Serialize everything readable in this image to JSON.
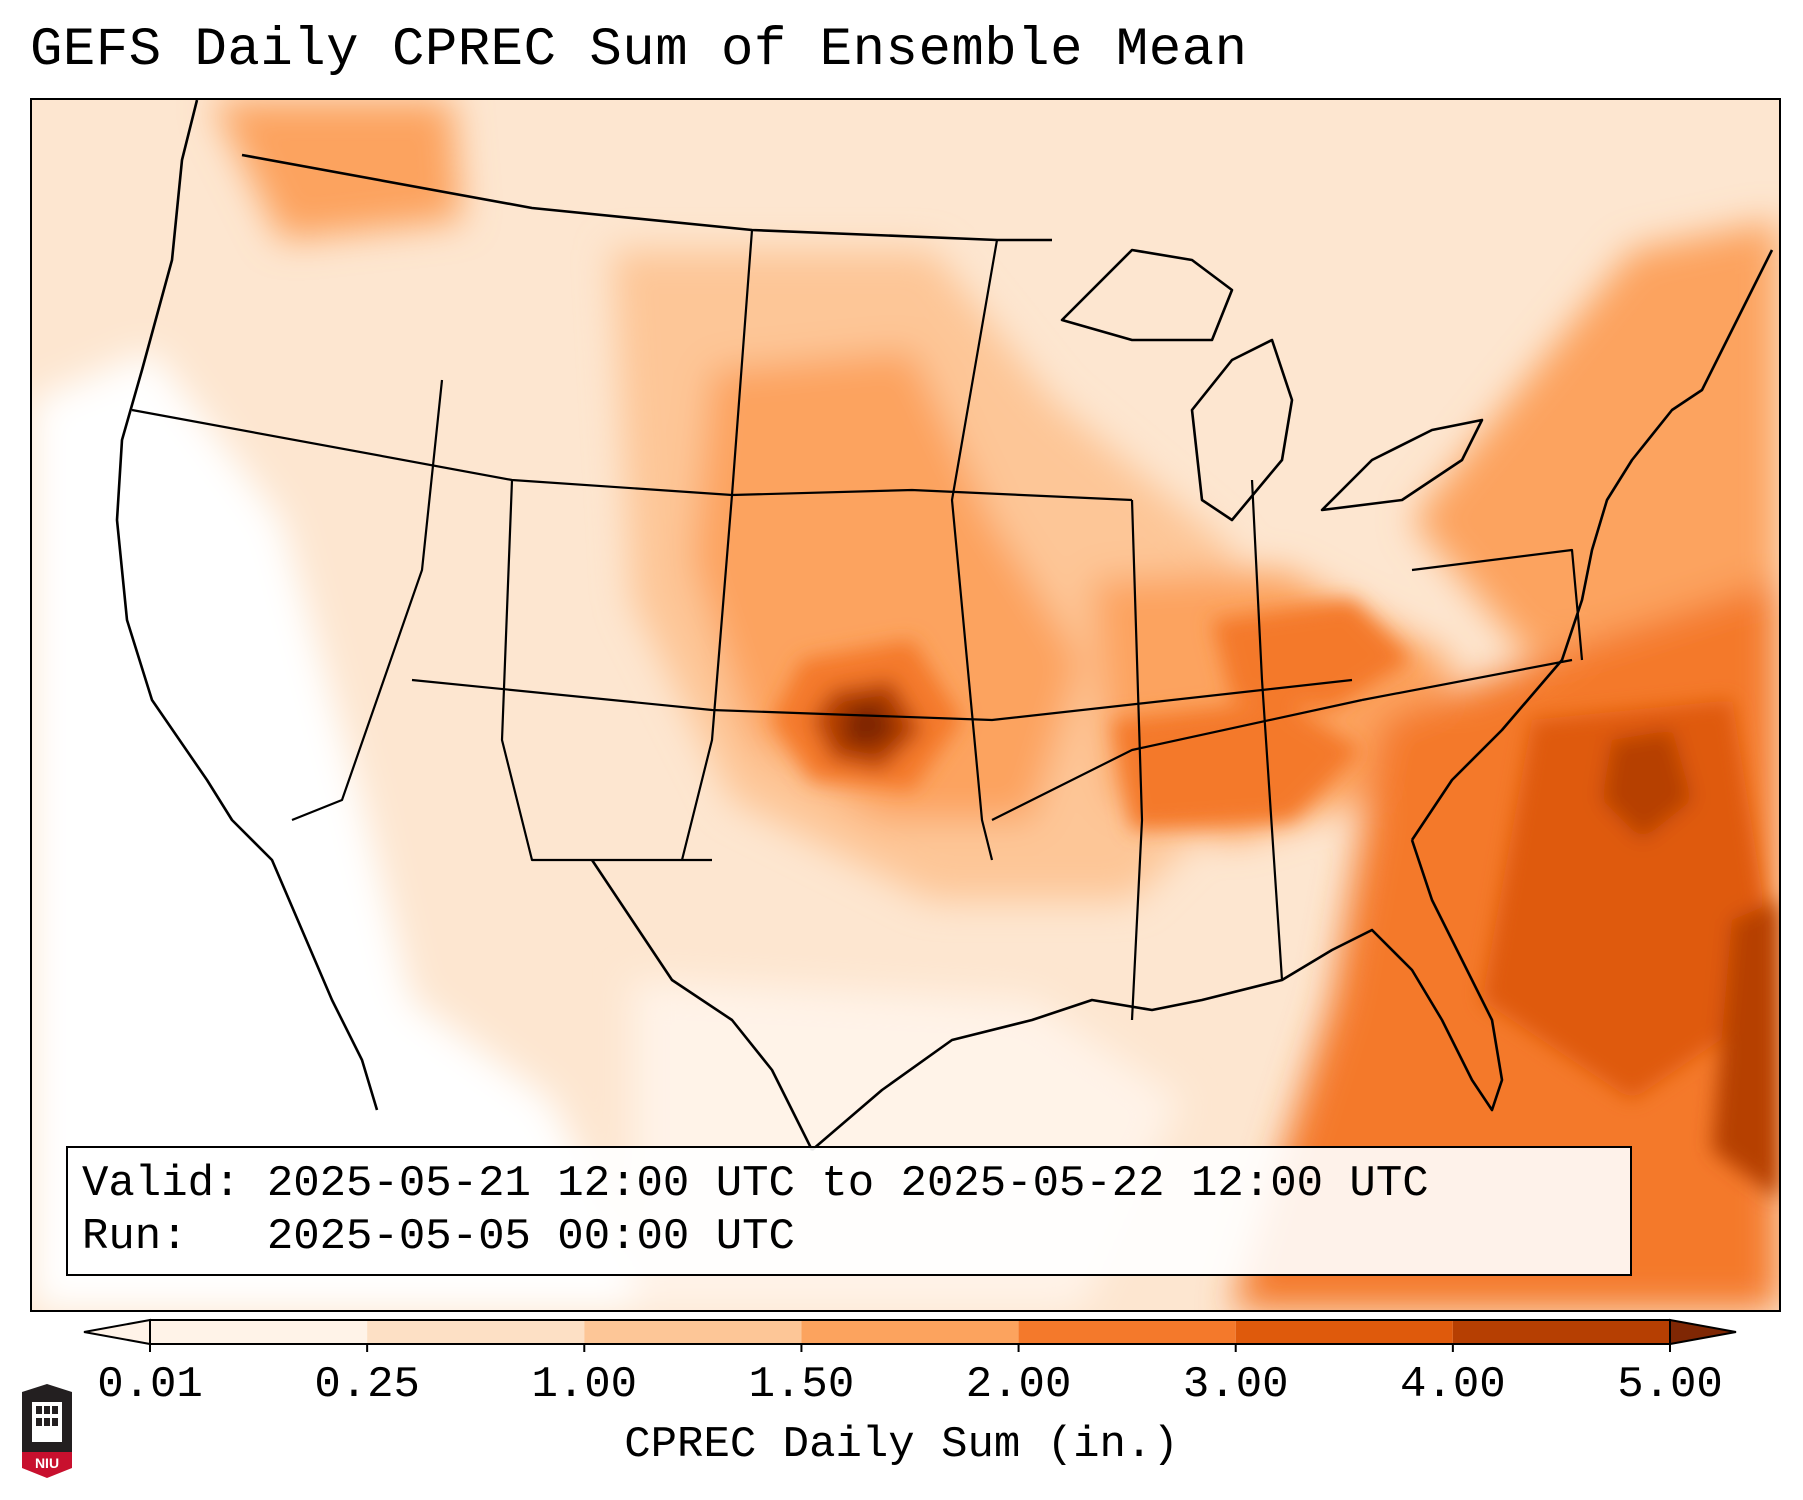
{
  "title": "GEFS Daily CPREC Sum of Ensemble Mean",
  "info": {
    "valid_label": "Valid:",
    "valid_value": "2025-05-21 12:00 UTC to 2025-05-22 12:00 UTC",
    "run_label": "Run:",
    "run_value": "2025-05-05 00:00 UTC"
  },
  "colorbar": {
    "label": "CPREC Daily Sum (in.)",
    "ticks": [
      "0.01",
      "0.25",
      "1.00",
      "1.50",
      "2.00",
      "3.00",
      "4.00",
      "5.00"
    ],
    "colors": [
      "#fff3e8",
      "#fde0c5",
      "#fdc697",
      "#fca35e",
      "#f4792b",
      "#df5a0c",
      "#b63f02",
      "#7f2704"
    ],
    "extend": "both"
  },
  "logo": {
    "text": "NIU",
    "colors": {
      "top": "#231f20",
      "bottom": "#c8102e"
    }
  },
  "map": {
    "land_outline_color": "#000000",
    "max_region": "Kansas / Oklahoma border"
  }
}
